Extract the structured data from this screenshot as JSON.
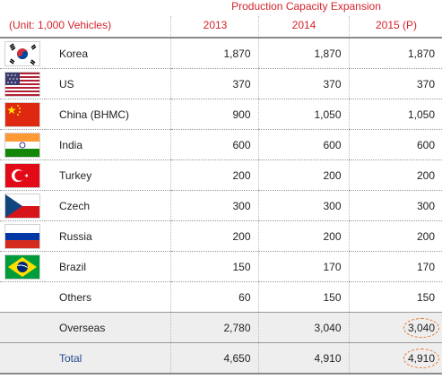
{
  "header": {
    "super_title": "Production Capacity Expansion",
    "unit": "(Unit: 1,000 Vehicles)",
    "years": [
      "2013",
      "2014",
      "2015 (P)"
    ]
  },
  "rows": [
    {
      "name": "Korea",
      "flag": "korea-flag-icon",
      "v2013": "1,870",
      "v2014": "1,870",
      "v2015": "1,870"
    },
    {
      "name": "US",
      "flag": "us-flag-icon",
      "v2013": "370",
      "v2014": "370",
      "v2015": "370"
    },
    {
      "name": "China (BHMC)",
      "flag": "china-flag-icon",
      "v2013": "900",
      "v2014": "1,050",
      "v2015": "1,050"
    },
    {
      "name": "India",
      "flag": "india-flag-icon",
      "v2013": "600",
      "v2014": "600",
      "v2015": "600"
    },
    {
      "name": "Turkey",
      "flag": "turkey-flag-icon",
      "v2013": "200",
      "v2014": "200",
      "v2015": "200"
    },
    {
      "name": "Czech",
      "flag": "czech-flag-icon",
      "v2013": "300",
      "v2014": "300",
      "v2015": "300"
    },
    {
      "name": "Russia",
      "flag": "russia-flag-icon",
      "v2013": "200",
      "v2014": "200",
      "v2015": "200"
    },
    {
      "name": "Brazil",
      "flag": "brazil-flag-icon",
      "v2013": "150",
      "v2014": "170",
      "v2015": "170"
    },
    {
      "name": "Others",
      "flag": "",
      "v2013": "60",
      "v2014": "150",
      "v2015": "150"
    }
  ],
  "overseas": {
    "name": "Overseas",
    "v2013": "2,780",
    "v2014": "3,040",
    "v2015": "3,040"
  },
  "total": {
    "name": "Total",
    "v2013": "4,650",
    "v2014": "4,910",
    "v2015": "4,910"
  },
  "colors": {
    "header_red": "#d4232c",
    "total_blue": "#1e4c8c",
    "highlight_orange": "#e8742a",
    "summary_bg": "#eeeeee"
  }
}
